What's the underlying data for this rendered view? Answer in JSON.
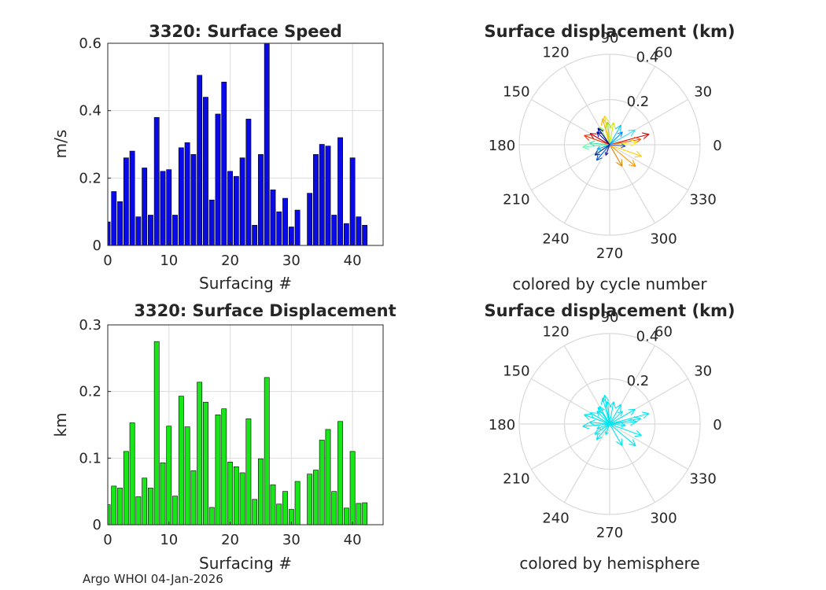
{
  "colors": {
    "speed_bar": "#0a0ae6",
    "disp_bar": "#19e619",
    "hemisphere_arrow": "#00e5ee"
  },
  "credit": "Argo WHOI 04-Jan-2026",
  "chart_data": [
    {
      "id": "speed",
      "type": "bar",
      "title": "3320: Surface Speed",
      "xlabel": "Surfacing #",
      "ylabel": "m/s",
      "xlim": [
        0,
        45
      ],
      "ylim": [
        0,
        0.6
      ],
      "xticks": [
        0,
        10,
        20,
        30,
        40
      ],
      "yticks": [
        0,
        0.2,
        0.4,
        0.6
      ],
      "ytick_labels": [
        "0",
        "0.2",
        "0.4",
        "0.6"
      ],
      "x": [
        0,
        1,
        2,
        3,
        4,
        5,
        6,
        7,
        8,
        9,
        10,
        11,
        12,
        13,
        14,
        15,
        16,
        17,
        18,
        19,
        20,
        21,
        22,
        23,
        24,
        25,
        26,
        27,
        28,
        29,
        30,
        31,
        33,
        34,
        35,
        36,
        37,
        38,
        39,
        40,
        41,
        42
      ],
      "values": [
        0.07,
        0.16,
        0.13,
        0.26,
        0.28,
        0.085,
        0.23,
        0.09,
        0.38,
        0.22,
        0.225,
        0.09,
        0.29,
        0.305,
        0.27,
        0.505,
        0.44,
        0.135,
        0.39,
        0.485,
        0.22,
        0.205,
        0.26,
        0.375,
        0.06,
        0.27,
        0.61,
        0.165,
        0.1,
        0.14,
        0.055,
        0.105,
        0.155,
        0.27,
        0.3,
        0.295,
        0.09,
        0.32,
        0.065,
        0.26,
        0.085,
        0.06
      ]
    },
    {
      "id": "displacement",
      "type": "bar",
      "title": "3320: Surface Displacement",
      "xlabel": "Surfacing #",
      "ylabel": "km",
      "xlim": [
        0,
        45
      ],
      "ylim": [
        0,
        0.3
      ],
      "xticks": [
        0,
        10,
        20,
        30,
        40
      ],
      "yticks": [
        0,
        0.1,
        0.2,
        0.3
      ],
      "ytick_labels": [
        "0",
        "0.1",
        "0.2",
        "0.3"
      ],
      "x": [
        0,
        1,
        2,
        3,
        4,
        5,
        6,
        7,
        8,
        9,
        10,
        11,
        12,
        13,
        14,
        15,
        16,
        17,
        18,
        19,
        20,
        21,
        22,
        23,
        24,
        25,
        26,
        27,
        28,
        29,
        30,
        31,
        33,
        34,
        35,
        36,
        37,
        38,
        39,
        40,
        41,
        42
      ],
      "values": [
        0.03,
        0.058,
        0.055,
        0.11,
        0.153,
        0.042,
        0.07,
        0.055,
        0.275,
        0.093,
        0.148,
        0.043,
        0.193,
        0.147,
        0.081,
        0.214,
        0.184,
        0.026,
        0.165,
        0.174,
        0.094,
        0.087,
        0.078,
        0.159,
        0.038,
        0.099,
        0.221,
        0.06,
        0.031,
        0.05,
        0.023,
        0.065,
        0.076,
        0.082,
        0.127,
        0.143,
        0.05,
        0.155,
        0.025,
        0.11,
        0.032,
        0.033
      ]
    },
    {
      "id": "polar-cycle",
      "type": "polar-quiver",
      "title": "Surface displacement (km)",
      "caption": "colored by cycle number",
      "rmax": 0.4,
      "rings": [
        0.2,
        0.4
      ],
      "ring_labels": [
        "0.2",
        "0.4"
      ],
      "angle_labels": [
        "0",
        "30",
        "60",
        "90",
        "120",
        "150",
        "180",
        "210",
        "240",
        "270",
        "300",
        "330"
      ],
      "arrows": [
        {
          "angle": 15,
          "r": 0.18,
          "color": "#d40000"
        },
        {
          "angle": 150,
          "r": 0.1,
          "color": "#cc0000"
        },
        {
          "angle": 160,
          "r": 0.12,
          "color": "#ff3300"
        },
        {
          "angle": 10,
          "r": 0.14,
          "color": "#ff5500"
        },
        {
          "angle": 320,
          "r": 0.15,
          "color": "#ff9900"
        },
        {
          "angle": 300,
          "r": 0.11,
          "color": "#dd8800"
        },
        {
          "angle": 105,
          "r": 0.12,
          "color": "#ffaa00"
        },
        {
          "angle": 340,
          "r": 0.15,
          "color": "#ffcc00"
        },
        {
          "angle": 100,
          "r": 0.13,
          "color": "#eedd00"
        },
        {
          "angle": 5,
          "r": 0.12,
          "color": "#ffee00"
        },
        {
          "angle": 80,
          "r": 0.1,
          "color": "#ccee00"
        },
        {
          "angle": 95,
          "r": 0.1,
          "color": "#99dd33"
        },
        {
          "angle": 120,
          "r": 0.09,
          "color": "#88ee44"
        },
        {
          "angle": 185,
          "r": 0.12,
          "color": "#66ffaa"
        },
        {
          "angle": 175,
          "r": 0.09,
          "color": "#44ddaa"
        },
        {
          "angle": 30,
          "r": 0.13,
          "color": "#33ddff"
        },
        {
          "angle": 60,
          "r": 0.1,
          "color": "#00ccff"
        },
        {
          "angle": 200,
          "r": 0.06,
          "color": "#00aaff"
        },
        {
          "angle": 45,
          "r": 0.08,
          "color": "#0088ff"
        },
        {
          "angle": 230,
          "r": 0.09,
          "color": "#0055ee"
        },
        {
          "angle": 135,
          "r": 0.08,
          "color": "#0000cc"
        },
        {
          "angle": 125,
          "r": 0.09,
          "color": "#000099"
        },
        {
          "angle": 250,
          "r": 0.05,
          "color": "#1a1aaa"
        },
        {
          "angle": 355,
          "r": 0.07,
          "color": "#2255cc"
        },
        {
          "angle": 215,
          "r": 0.08,
          "color": "#003388"
        }
      ]
    },
    {
      "id": "polar-hemisphere",
      "type": "polar-quiver",
      "title": "Surface displacement (km)",
      "caption": "colored by hemisphere",
      "rmax": 0.4,
      "rings": [
        0.2,
        0.4
      ],
      "ring_labels": [
        "0.2",
        "0.4"
      ],
      "angle_labels": [
        "0",
        "30",
        "60",
        "90",
        "120",
        "150",
        "180",
        "210",
        "240",
        "270",
        "300",
        "330"
      ],
      "arrows": [
        {
          "angle": 15,
          "r": 0.18,
          "color": "#00e5ee"
        },
        {
          "angle": 150,
          "r": 0.1,
          "color": "#00e5ee"
        },
        {
          "angle": 160,
          "r": 0.12,
          "color": "#00e5ee"
        },
        {
          "angle": 10,
          "r": 0.14,
          "color": "#00e5ee"
        },
        {
          "angle": 320,
          "r": 0.15,
          "color": "#00e5ee"
        },
        {
          "angle": 300,
          "r": 0.11,
          "color": "#00e5ee"
        },
        {
          "angle": 105,
          "r": 0.12,
          "color": "#00e5ee"
        },
        {
          "angle": 340,
          "r": 0.15,
          "color": "#00e5ee"
        },
        {
          "angle": 100,
          "r": 0.13,
          "color": "#00e5ee"
        },
        {
          "angle": 5,
          "r": 0.12,
          "color": "#00e5ee"
        },
        {
          "angle": 80,
          "r": 0.1,
          "color": "#00e5ee"
        },
        {
          "angle": 95,
          "r": 0.1,
          "color": "#00e5ee"
        },
        {
          "angle": 120,
          "r": 0.09,
          "color": "#00e5ee"
        },
        {
          "angle": 185,
          "r": 0.12,
          "color": "#00e5ee"
        },
        {
          "angle": 175,
          "r": 0.09,
          "color": "#00e5ee"
        },
        {
          "angle": 30,
          "r": 0.13,
          "color": "#00e5ee"
        },
        {
          "angle": 60,
          "r": 0.1,
          "color": "#00e5ee"
        },
        {
          "angle": 200,
          "r": 0.06,
          "color": "#00e5ee"
        },
        {
          "angle": 45,
          "r": 0.08,
          "color": "#00e5ee"
        },
        {
          "angle": 230,
          "r": 0.09,
          "color": "#00e5ee"
        },
        {
          "angle": 135,
          "r": 0.08,
          "color": "#00e5ee"
        },
        {
          "angle": 125,
          "r": 0.09,
          "color": "#00e5ee"
        },
        {
          "angle": 250,
          "r": 0.05,
          "color": "#00e5ee"
        },
        {
          "angle": 355,
          "r": 0.07,
          "color": "#00e5ee"
        },
        {
          "angle": 215,
          "r": 0.08,
          "color": "#00e5ee"
        }
      ]
    }
  ]
}
